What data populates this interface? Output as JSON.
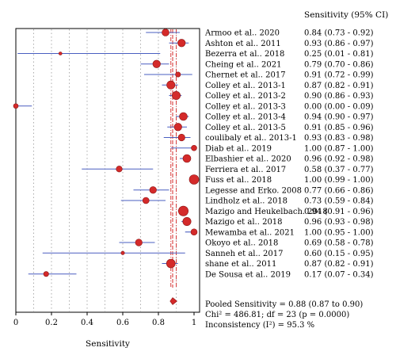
{
  "chart_data": {
    "type": "forest",
    "right_header": "Sensitivity (95% CI)",
    "xlabel": "Sensitivity",
    "xlim": [
      0,
      1
    ],
    "x_ticks": [
      "0",
      "0.2",
      "0.4",
      "0.6",
      "0.8",
      "1"
    ],
    "x_tick_values": [
      0,
      0.2,
      0.4,
      0.6,
      0.8,
      1
    ],
    "grid": "dotted vertical",
    "colors": {
      "marker": "#d42a2a",
      "ci_line": "#4a5fc0",
      "pooled_line": "#d42a2a",
      "grid": "#999999"
    },
    "studies": [
      {
        "label": "Armoo et al.. 2020",
        "est": 0.84,
        "lo": 0.73,
        "hi": 0.92,
        "text": "0.84 (0.73 - 0.92)",
        "weight": 4.5
      },
      {
        "label": "Ashton et al.. 2011",
        "est": 0.93,
        "lo": 0.86,
        "hi": 0.97,
        "text": "0.93 (0.86 - 0.97)",
        "weight": 4.8
      },
      {
        "label": "Bezerra et al.. 2018",
        "est": 0.25,
        "lo": 0.01,
        "hi": 0.81,
        "text": "0.25 (0.01 - 0.81)",
        "weight": 2.0
      },
      {
        "label": "Cheing et al.. 2021",
        "est": 0.79,
        "lo": 0.7,
        "hi": 0.86,
        "text": "0.79 (0.70 - 0.86)",
        "weight": 4.8
      },
      {
        "label": "Chernet et al.. 2017",
        "est": 0.91,
        "lo": 0.72,
        "hi": 0.99,
        "text": "0.91 (0.72 - 0.99)",
        "weight": 3.2
      },
      {
        "label": "Colley et al.. 2013-1",
        "est": 0.87,
        "lo": 0.82,
        "hi": 0.91,
        "text": "0.87 (0.82 - 0.91)",
        "weight": 5.2
      },
      {
        "label": "Colley et al.. 2013-2",
        "est": 0.9,
        "lo": 0.86,
        "hi": 0.93,
        "text": "0.90 (0.86 - 0.93)",
        "weight": 5.2
      },
      {
        "label": "Colley et al.. 2013-3",
        "est": 0.0,
        "lo": 0.0,
        "hi": 0.09,
        "text": "0.00 (0.00 - 0.09)",
        "weight": 3.0
      },
      {
        "label": "Colley et al.. 2013-4",
        "est": 0.94,
        "lo": 0.9,
        "hi": 0.97,
        "text": "0.94 (0.90 - 0.97)",
        "weight": 5.0
      },
      {
        "label": "Colley et al.. 2013-5",
        "est": 0.91,
        "lo": 0.85,
        "hi": 0.96,
        "text": "0.91 (0.85 - 0.96)",
        "weight": 4.8
      },
      {
        "label": "coulibaly et al.. 2013-1",
        "est": 0.93,
        "lo": 0.83,
        "hi": 0.98,
        "text": "0.93 (0.83 - 0.98)",
        "weight": 4.3
      },
      {
        "label": "Diab et al.. 2019",
        "est": 1.0,
        "lo": 0.87,
        "hi": 1.0,
        "text": "1.00 (0.87 - 1.00)",
        "weight": 3.5
      },
      {
        "label": "Elbashier et al.. 2020",
        "est": 0.96,
        "lo": 0.92,
        "hi": 0.98,
        "text": "0.96 (0.92 - 0.98)",
        "weight": 5.0
      },
      {
        "label": "Ferriera et al.. 2017",
        "est": 0.58,
        "lo": 0.37,
        "hi": 0.77,
        "text": "0.58 (0.37 - 0.77)",
        "weight": 3.8
      },
      {
        "label": "Fuss et al.. 2018",
        "est": 1.0,
        "lo": 0.99,
        "hi": 1.0,
        "text": "1.00 (0.99 - 1.00)",
        "weight": 6.0
      },
      {
        "label": "Legesse and Erko. 2008",
        "est": 0.77,
        "lo": 0.66,
        "hi": 0.86,
        "text": "0.77 (0.66 - 0.86)",
        "weight": 4.3
      },
      {
        "label": "Lindholz et al.. 2018",
        "est": 0.73,
        "lo": 0.59,
        "hi": 0.84,
        "text": "0.73 (0.59 - 0.84)",
        "weight": 4.0
      },
      {
        "label": "Mazigo and Heukelbach. 2018",
        "est": 0.94,
        "lo": 0.91,
        "hi": 0.96,
        "text": "0.94 (0.91 - 0.96)",
        "weight": 6.2
      },
      {
        "label": "Mazigo et al.. 2018",
        "est": 0.96,
        "lo": 0.93,
        "hi": 0.98,
        "text": "0.96 (0.93 - 0.98)",
        "weight": 5.2
      },
      {
        "label": "Mewamba et al.. 2021",
        "est": 1.0,
        "lo": 0.95,
        "hi": 1.0,
        "text": "1.00 (0.95 - 1.00)",
        "weight": 4.0
      },
      {
        "label": "Okoyo et al.. 2018",
        "est": 0.69,
        "lo": 0.58,
        "hi": 0.78,
        "text": "0.69 (0.58 - 0.78)",
        "weight": 4.3
      },
      {
        "label": "Sanneh et al.. 2017",
        "est": 0.6,
        "lo": 0.15,
        "hi": 0.95,
        "text": "0.60 (0.15 - 0.95)",
        "weight": 2.2
      },
      {
        "label": "shane et al.. 2011",
        "est": 0.87,
        "lo": 0.82,
        "hi": 0.91,
        "text": "0.87 (0.82 - 0.91)",
        "weight": 5.5
      },
      {
        "label": "De Sousa et al.. 2019",
        "est": 0.17,
        "lo": 0.07,
        "hi": 0.34,
        "text": "0.17 (0.07 - 0.34)",
        "weight": 3.2
      }
    ],
    "pooled": {
      "est": 0.88,
      "lo": 0.87,
      "hi": 0.9
    },
    "summary_lines": [
      "Pooled Sensitivity = 0.88 (0.87 to 0.90)",
      "Chi² = 486.81; df = 23 (p = 0.0000)",
      "Inconsistency (I²) = 95.3 %"
    ]
  }
}
